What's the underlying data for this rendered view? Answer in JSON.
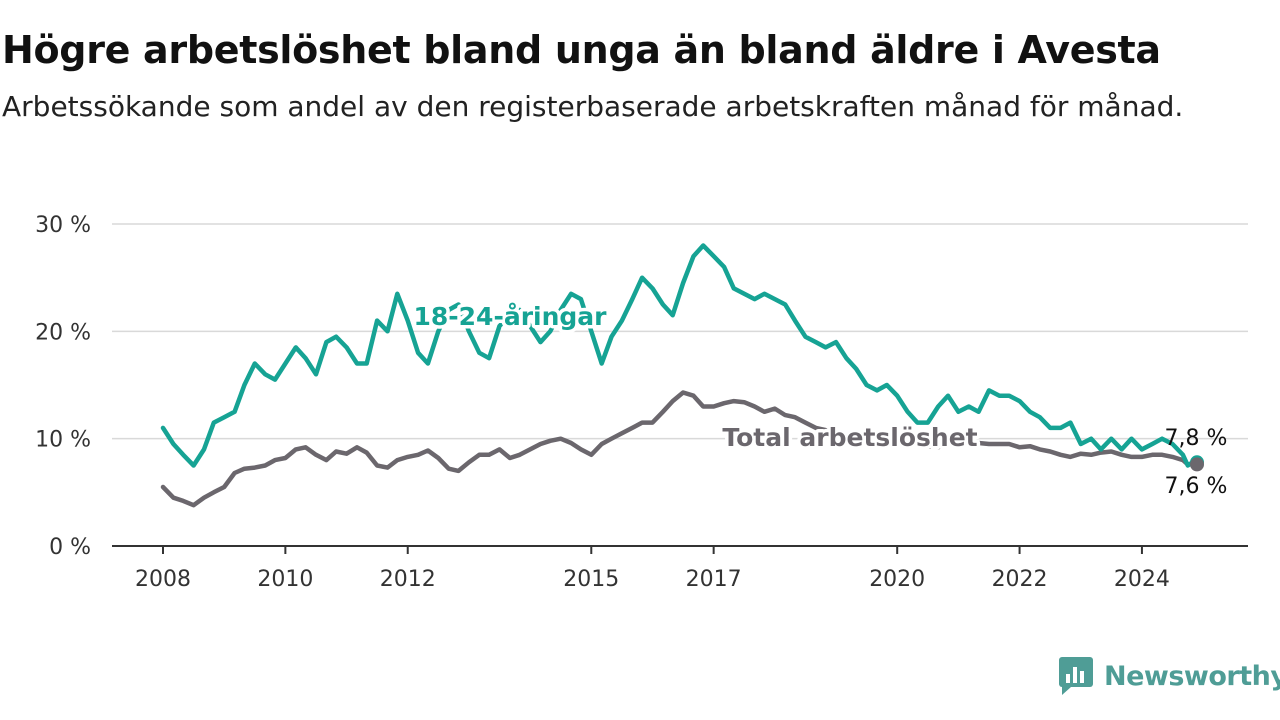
{
  "title": "Högre arbetslöshet bland unga än bland äldre i Avesta",
  "subtitle": "Arbetssökande som andel av den registerbaserade arbetskraften månad för månad.",
  "branding": {
    "name": "Newsworthy",
    "icon": "newsworthy-logo-icon",
    "color": "#4f9d96"
  },
  "chart_data": {
    "type": "line",
    "title": "Högre arbetslöshet bland unga än bland äldre i Avesta",
    "subtitle": "Arbetssökande som andel av den registerbaserade arbetskraften månad för månad.",
    "xlabel": "",
    "ylabel": "",
    "x_ticks": [
      "2008",
      "2010",
      "2012",
      "2015",
      "2017",
      "2020",
      "2022",
      "2024"
    ],
    "y_ticks": [
      "0 %",
      "10 %",
      "20 %",
      "30 %"
    ],
    "ylim": [
      0,
      30
    ],
    "xlim": [
      2008.0,
      2024.9
    ],
    "grid": true,
    "legend": "inline labels on lines",
    "series": [
      {
        "name": "18-24-åringar",
        "color": "#16a394",
        "end_label": "7,8 %",
        "points": [
          [
            2008.0,
            11.0
          ],
          [
            2008.17,
            9.5
          ],
          [
            2008.33,
            8.5
          ],
          [
            2008.5,
            7.5
          ],
          [
            2008.67,
            9.0
          ],
          [
            2008.83,
            11.5
          ],
          [
            2009.0,
            12.0
          ],
          [
            2009.17,
            12.5
          ],
          [
            2009.33,
            15.0
          ],
          [
            2009.5,
            17.0
          ],
          [
            2009.67,
            16.0
          ],
          [
            2009.83,
            15.5
          ],
          [
            2010.0,
            17.0
          ],
          [
            2010.17,
            18.5
          ],
          [
            2010.33,
            17.5
          ],
          [
            2010.5,
            16.0
          ],
          [
            2010.67,
            19.0
          ],
          [
            2010.83,
            19.5
          ],
          [
            2011.0,
            18.5
          ],
          [
            2011.17,
            17.0
          ],
          [
            2011.33,
            17.0
          ],
          [
            2011.5,
            21.0
          ],
          [
            2011.67,
            20.0
          ],
          [
            2011.83,
            23.5
          ],
          [
            2012.0,
            21.0
          ],
          [
            2012.17,
            18.0
          ],
          [
            2012.33,
            17.0
          ],
          [
            2012.5,
            20.0
          ],
          [
            2012.67,
            22.0
          ],
          [
            2012.83,
            22.5
          ],
          [
            2013.0,
            20.0
          ],
          [
            2013.17,
            18.0
          ],
          [
            2013.33,
            17.5
          ],
          [
            2013.5,
            20.5
          ],
          [
            2013.67,
            21.5
          ],
          [
            2013.83,
            22.0
          ],
          [
            2014.0,
            20.5
          ],
          [
            2014.17,
            19.0
          ],
          [
            2014.33,
            20.0
          ],
          [
            2014.5,
            22.0
          ],
          [
            2014.67,
            23.5
          ],
          [
            2014.83,
            23.0
          ],
          [
            2015.0,
            20.0
          ],
          [
            2015.17,
            17.0
          ],
          [
            2015.33,
            19.5
          ],
          [
            2015.5,
            21.0
          ],
          [
            2015.67,
            23.0
          ],
          [
            2015.83,
            25.0
          ],
          [
            2016.0,
            24.0
          ],
          [
            2016.17,
            22.5
          ],
          [
            2016.33,
            21.5
          ],
          [
            2016.5,
            24.5
          ],
          [
            2016.67,
            27.0
          ],
          [
            2016.83,
            28.0
          ],
          [
            2017.0,
            27.0
          ],
          [
            2017.17,
            26.0
          ],
          [
            2017.33,
            24.0
          ],
          [
            2017.5,
            23.5
          ],
          [
            2017.67,
            23.0
          ],
          [
            2017.83,
            23.5
          ],
          [
            2018.0,
            23.0
          ],
          [
            2018.17,
            22.5
          ],
          [
            2018.33,
            21.0
          ],
          [
            2018.5,
            19.5
          ],
          [
            2018.67,
            19.0
          ],
          [
            2018.83,
            18.5
          ],
          [
            2019.0,
            19.0
          ],
          [
            2019.17,
            17.5
          ],
          [
            2019.33,
            16.5
          ],
          [
            2019.5,
            15.0
          ],
          [
            2019.67,
            14.5
          ],
          [
            2019.83,
            15.0
          ],
          [
            2020.0,
            14.0
          ],
          [
            2020.17,
            12.5
          ],
          [
            2020.33,
            11.5
          ],
          [
            2020.5,
            11.5
          ],
          [
            2020.67,
            13.0
          ],
          [
            2020.83,
            14.0
          ],
          [
            2021.0,
            12.5
          ],
          [
            2021.17,
            13.0
          ],
          [
            2021.33,
            12.5
          ],
          [
            2021.5,
            14.5
          ],
          [
            2021.67,
            14.0
          ],
          [
            2021.83,
            14.0
          ],
          [
            2022.0,
            13.5
          ],
          [
            2022.17,
            12.5
          ],
          [
            2022.33,
            12.0
          ],
          [
            2022.5,
            11.0
          ],
          [
            2022.67,
            11.0
          ],
          [
            2022.83,
            11.5
          ],
          [
            2023.0,
            9.5
          ],
          [
            2023.17,
            10.0
          ],
          [
            2023.33,
            9.0
          ],
          [
            2023.5,
            10.0
          ],
          [
            2023.67,
            9.0
          ],
          [
            2023.83,
            10.0
          ],
          [
            2024.0,
            9.0
          ],
          [
            2024.17,
            9.5
          ],
          [
            2024.33,
            10.0
          ],
          [
            2024.5,
            9.5
          ],
          [
            2024.67,
            8.5
          ],
          [
            2024.75,
            7.5
          ],
          [
            2024.83,
            7.8
          ],
          [
            2024.9,
            7.8
          ]
        ]
      },
      {
        "name": "Total arbetslöshet",
        "color": "#6b676d",
        "end_label": "7,6 %",
        "points": [
          [
            2008.0,
            5.5
          ],
          [
            2008.17,
            4.5
          ],
          [
            2008.33,
            4.2
          ],
          [
            2008.5,
            3.8
          ],
          [
            2008.67,
            4.5
          ],
          [
            2008.83,
            5.0
          ],
          [
            2009.0,
            5.5
          ],
          [
            2009.17,
            6.8
          ],
          [
            2009.33,
            7.2
          ],
          [
            2009.5,
            7.3
          ],
          [
            2009.67,
            7.5
          ],
          [
            2009.83,
            8.0
          ],
          [
            2010.0,
            8.2
          ],
          [
            2010.17,
            9.0
          ],
          [
            2010.33,
            9.2
          ],
          [
            2010.5,
            8.5
          ],
          [
            2010.67,
            8.0
          ],
          [
            2010.83,
            8.8
          ],
          [
            2011.0,
            8.6
          ],
          [
            2011.17,
            9.2
          ],
          [
            2011.33,
            8.7
          ],
          [
            2011.5,
            7.5
          ],
          [
            2011.67,
            7.3
          ],
          [
            2011.83,
            8.0
          ],
          [
            2012.0,
            8.3
          ],
          [
            2012.17,
            8.5
          ],
          [
            2012.33,
            8.9
          ],
          [
            2012.5,
            8.2
          ],
          [
            2012.67,
            7.2
          ],
          [
            2012.83,
            7.0
          ],
          [
            2013.0,
            7.8
          ],
          [
            2013.17,
            8.5
          ],
          [
            2013.33,
            8.5
          ],
          [
            2013.5,
            9.0
          ],
          [
            2013.67,
            8.2
          ],
          [
            2013.83,
            8.5
          ],
          [
            2014.0,
            9.0
          ],
          [
            2014.17,
            9.5
          ],
          [
            2014.33,
            9.8
          ],
          [
            2014.5,
            10.0
          ],
          [
            2014.67,
            9.6
          ],
          [
            2014.83,
            9.0
          ],
          [
            2015.0,
            8.5
          ],
          [
            2015.17,
            9.5
          ],
          [
            2015.33,
            10.0
          ],
          [
            2015.5,
            10.5
          ],
          [
            2015.67,
            11.0
          ],
          [
            2015.83,
            11.5
          ],
          [
            2016.0,
            11.5
          ],
          [
            2016.17,
            12.5
          ],
          [
            2016.33,
            13.5
          ],
          [
            2016.5,
            14.3
          ],
          [
            2016.67,
            14.0
          ],
          [
            2016.83,
            13.0
          ],
          [
            2017.0,
            13.0
          ],
          [
            2017.17,
            13.3
          ],
          [
            2017.33,
            13.5
          ],
          [
            2017.5,
            13.4
          ],
          [
            2017.67,
            13.0
          ],
          [
            2017.83,
            12.5
          ],
          [
            2018.0,
            12.8
          ],
          [
            2018.17,
            12.2
          ],
          [
            2018.33,
            12.0
          ],
          [
            2018.5,
            11.5
          ],
          [
            2018.67,
            11.0
          ],
          [
            2018.83,
            10.8
          ],
          [
            2019.0,
            10.5
          ],
          [
            2019.17,
            10.3
          ],
          [
            2019.33,
            10.0
          ],
          [
            2019.5,
            9.8
          ],
          [
            2019.67,
            9.5
          ],
          [
            2019.83,
            9.5
          ],
          [
            2020.0,
            9.5
          ],
          [
            2020.17,
            9.5
          ],
          [
            2020.33,
            9.5
          ],
          [
            2020.5,
            9.3
          ],
          [
            2020.67,
            9.2
          ],
          [
            2020.83,
            9.5
          ],
          [
            2021.0,
            9.5
          ],
          [
            2021.17,
            9.5
          ],
          [
            2021.33,
            9.6
          ],
          [
            2021.5,
            9.5
          ],
          [
            2021.67,
            9.5
          ],
          [
            2021.83,
            9.5
          ],
          [
            2022.0,
            9.2
          ],
          [
            2022.17,
            9.3
          ],
          [
            2022.33,
            9.0
          ],
          [
            2022.5,
            8.8
          ],
          [
            2022.67,
            8.5
          ],
          [
            2022.83,
            8.3
          ],
          [
            2023.0,
            8.6
          ],
          [
            2023.17,
            8.5
          ],
          [
            2023.33,
            8.7
          ],
          [
            2023.5,
            8.8
          ],
          [
            2023.67,
            8.5
          ],
          [
            2023.83,
            8.3
          ],
          [
            2024.0,
            8.3
          ],
          [
            2024.17,
            8.5
          ],
          [
            2024.33,
            8.5
          ],
          [
            2024.5,
            8.3
          ],
          [
            2024.67,
            8.0
          ],
          [
            2024.75,
            7.6
          ],
          [
            2024.83,
            7.7
          ],
          [
            2024.9,
            7.6
          ]
        ]
      }
    ]
  }
}
